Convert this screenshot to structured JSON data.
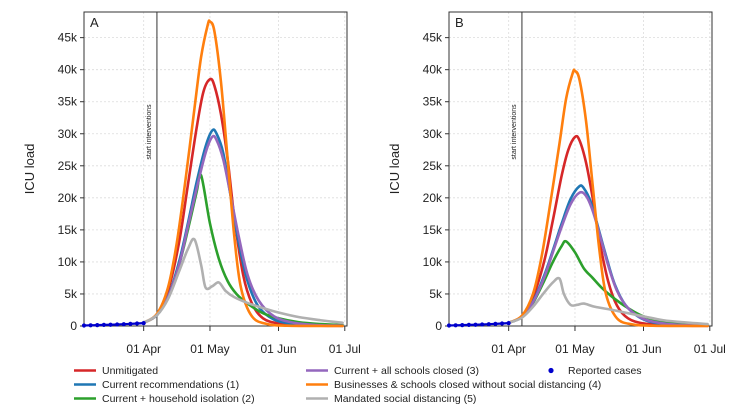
{
  "chart_data": [
    {
      "panel": "A",
      "type": "line",
      "ylabel": "ICU load",
      "xlabel": "",
      "ylim": [
        0,
        49000
      ],
      "xlim": [
        "2020-03-05",
        "2020-07-02"
      ],
      "y_ticks": [
        0,
        5000,
        10000,
        15000,
        20000,
        25000,
        30000,
        35000,
        40000,
        45000
      ],
      "y_tick_labels": [
        "0",
        "5k",
        "10k",
        "15k",
        "20k",
        "25k",
        "30k",
        "35k",
        "40k",
        "45k"
      ],
      "x_ticks": [
        "2020-04-01",
        "2020-05-01",
        "2020-06-01",
        "2020-07-01"
      ],
      "x_tick_labels": [
        "01 Apr",
        "01 May",
        "01 Jun",
        "01 Jul"
      ],
      "grid": true,
      "annotation": {
        "x": "2020-04-07",
        "label": "start interventions"
      },
      "series": [
        {
          "name": "Unmitigated",
          "color": "#d62728",
          "x": [
            "2020-04-01",
            "2020-04-07",
            "2020-04-12",
            "2020-04-17",
            "2020-04-21",
            "2020-04-25",
            "2020-04-28",
            "2020-05-01",
            "2020-05-03",
            "2020-05-06",
            "2020-05-09",
            "2020-05-12",
            "2020-05-16",
            "2020-05-20",
            "2020-05-25",
            "2020-06-01",
            "2020-06-10",
            "2020-06-20",
            "2020-06-30"
          ],
          "y": [
            500,
            1800,
            5500,
            13000,
            22000,
            31000,
            36500,
            38500,
            37500,
            33000,
            26000,
            17000,
            8000,
            3500,
            1200,
            400,
            150,
            50,
            20
          ]
        },
        {
          "name": "Current recommendations (1)",
          "color": "#1f77b4",
          "x": [
            "2020-04-01",
            "2020-04-07",
            "2020-04-12",
            "2020-04-17",
            "2020-04-21",
            "2020-04-25",
            "2020-04-29",
            "2020-05-02",
            "2020-05-04",
            "2020-05-07",
            "2020-05-10",
            "2020-05-14",
            "2020-05-18",
            "2020-05-23",
            "2020-05-30",
            "2020-06-08",
            "2020-06-18",
            "2020-06-30"
          ],
          "y": [
            500,
            1700,
            4500,
            10000,
            16000,
            22500,
            28000,
            30500,
            30000,
            27000,
            21000,
            13000,
            7000,
            3000,
            1000,
            300,
            100,
            30
          ]
        },
        {
          "name": "Current + household isolation (2)",
          "color": "#2ca02c",
          "x": [
            "2020-04-01",
            "2020-04-07",
            "2020-04-12",
            "2020-04-17",
            "2020-04-21",
            "2020-04-25",
            "2020-04-27",
            "2020-05-01",
            "2020-05-05",
            "2020-05-09",
            "2020-05-13",
            "2020-05-18",
            "2020-05-25",
            "2020-06-01",
            "2020-06-10",
            "2020-06-20",
            "2020-06-30"
          ],
          "y": [
            500,
            1700,
            4500,
            9500,
            15000,
            21000,
            23500,
            16000,
            10500,
            7000,
            5000,
            3500,
            2000,
            1200,
            600,
            300,
            150
          ]
        },
        {
          "name": "Current + all schools closed (3)",
          "color": "#9467bd",
          "x": [
            "2020-04-01",
            "2020-04-07",
            "2020-04-12",
            "2020-04-17",
            "2020-04-21",
            "2020-04-25",
            "2020-04-29",
            "2020-05-02",
            "2020-05-04",
            "2020-05-07",
            "2020-05-10",
            "2020-05-14",
            "2020-05-18",
            "2020-05-23",
            "2020-05-30",
            "2020-06-08",
            "2020-06-18",
            "2020-06-30"
          ],
          "y": [
            500,
            1700,
            4500,
            9500,
            15500,
            21500,
            27000,
            29500,
            29000,
            26000,
            21000,
            14000,
            8000,
            4000,
            1500,
            500,
            150,
            50
          ]
        },
        {
          "name": "Businesses & schools closed without social distancing (4)",
          "color": "#ff7f0e",
          "x": [
            "2020-04-01",
            "2020-04-07",
            "2020-04-12",
            "2020-04-16",
            "2020-04-20",
            "2020-04-24",
            "2020-04-27",
            "2020-04-30",
            "2020-05-01",
            "2020-05-03",
            "2020-05-06",
            "2020-05-09",
            "2020-05-12",
            "2020-05-15",
            "2020-05-20",
            "2020-05-27",
            "2020-06-05",
            "2020-06-20",
            "2020-06-30"
          ],
          "y": [
            500,
            1900,
            6000,
            13000,
            23000,
            34000,
            42000,
            47000,
            47500,
            46000,
            38000,
            26000,
            14000,
            6000,
            1500,
            300,
            50,
            10,
            0
          ]
        },
        {
          "name": "Mandated social distancing (5)",
          "color": "#b0b0b0",
          "x": [
            "2020-04-01",
            "2020-04-07",
            "2020-04-12",
            "2020-04-17",
            "2020-04-21",
            "2020-04-24",
            "2020-04-27",
            "2020-04-29",
            "2020-05-02",
            "2020-05-05",
            "2020-05-08",
            "2020-05-12",
            "2020-05-18",
            "2020-05-25",
            "2020-06-01",
            "2020-06-10",
            "2020-06-20",
            "2020-06-30"
          ],
          "y": [
            500,
            1700,
            4200,
            8500,
            12000,
            13500,
            9500,
            6000,
            6200,
            6800,
            5500,
            4500,
            3600,
            2800,
            2100,
            1400,
            900,
            500
          ]
        },
        {
          "name": "Reported cases",
          "color": "#0000cc",
          "style": "points",
          "x": [
            "2020-03-05",
            "2020-03-08",
            "2020-03-11",
            "2020-03-14",
            "2020-03-17",
            "2020-03-20",
            "2020-03-23",
            "2020-03-26",
            "2020-03-29",
            "2020-04-01"
          ],
          "y": [
            80,
            110,
            140,
            170,
            200,
            240,
            280,
            330,
            390,
            450
          ]
        }
      ]
    },
    {
      "panel": "B",
      "type": "line",
      "ylabel": "ICU load",
      "xlabel": "",
      "ylim": [
        0,
        49000
      ],
      "xlim": [
        "2020-03-05",
        "2020-07-02"
      ],
      "y_ticks": [
        0,
        5000,
        10000,
        15000,
        20000,
        25000,
        30000,
        35000,
        40000,
        45000
      ],
      "y_tick_labels": [
        "0",
        "5k",
        "10k",
        "15k",
        "20k",
        "25k",
        "30k",
        "35k",
        "40k",
        "45k"
      ],
      "x_ticks": [
        "2020-04-01",
        "2020-05-01",
        "2020-06-01",
        "2020-07-01"
      ],
      "x_tick_labels": [
        "01 Apr",
        "01 May",
        "01 Jun",
        "01 Jul"
      ],
      "grid": true,
      "annotation": {
        "x": "2020-04-07",
        "label": "start interventions"
      },
      "series": [
        {
          "name": "Unmitigated",
          "color": "#d62728",
          "x": [
            "2020-04-01",
            "2020-04-07",
            "2020-04-12",
            "2020-04-17",
            "2020-04-21",
            "2020-04-25",
            "2020-04-28",
            "2020-05-01",
            "2020-05-03",
            "2020-05-06",
            "2020-05-09",
            "2020-05-12",
            "2020-05-16",
            "2020-05-20",
            "2020-05-25",
            "2020-06-01",
            "2020-06-10",
            "2020-06-20",
            "2020-06-30"
          ],
          "y": [
            500,
            1500,
            4500,
            10000,
            16500,
            23500,
            27500,
            29500,
            29000,
            25500,
            20000,
            13500,
            7000,
            3200,
            1200,
            400,
            150,
            50,
            20
          ]
        },
        {
          "name": "Current recommendations (1)",
          "color": "#1f77b4",
          "x": [
            "2020-04-01",
            "2020-04-07",
            "2020-04-12",
            "2020-04-17",
            "2020-04-21",
            "2020-04-25",
            "2020-04-29",
            "2020-05-03",
            "2020-05-05",
            "2020-05-08",
            "2020-05-11",
            "2020-05-15",
            "2020-05-19",
            "2020-05-24",
            "2020-05-31",
            "2020-06-08",
            "2020-06-18",
            "2020-06-30"
          ],
          "y": [
            500,
            1400,
            3800,
            7800,
            11800,
            16000,
            19800,
            21800,
            21500,
            19500,
            16000,
            11000,
            6500,
            3200,
            1200,
            400,
            120,
            40
          ]
        },
        {
          "name": "Current + household isolation (2)",
          "color": "#2ca02c",
          "x": [
            "2020-04-01",
            "2020-04-07",
            "2020-04-12",
            "2020-04-17",
            "2020-04-21",
            "2020-04-25",
            "2020-04-27",
            "2020-05-01",
            "2020-05-05",
            "2020-05-09",
            "2020-05-13",
            "2020-05-18",
            "2020-05-25",
            "2020-06-01",
            "2020-06-10",
            "2020-06-20",
            "2020-06-30"
          ],
          "y": [
            500,
            1400,
            3600,
            7000,
            10000,
            12500,
            13200,
            11500,
            9000,
            7500,
            6000,
            4500,
            2800,
            1500,
            700,
            300,
            120
          ]
        },
        {
          "name": "Current + all schools closed (3)",
          "color": "#9467bd",
          "x": [
            "2020-04-01",
            "2020-04-07",
            "2020-04-12",
            "2020-04-17",
            "2020-04-21",
            "2020-04-25",
            "2020-04-29",
            "2020-05-03",
            "2020-05-06",
            "2020-05-09",
            "2020-05-12",
            "2020-05-16",
            "2020-05-20",
            "2020-05-25",
            "2020-06-01",
            "2020-06-10",
            "2020-06-20",
            "2020-06-30"
          ],
          "y": [
            500,
            1400,
            3700,
            7500,
            11500,
            15500,
            19000,
            20800,
            20300,
            18000,
            14500,
            9500,
            5500,
            2800,
            1100,
            400,
            120,
            40
          ]
        },
        {
          "name": "Businesses & schools closed without social distancing (4)",
          "color": "#ff7f0e",
          "x": [
            "2020-04-01",
            "2020-04-07",
            "2020-04-12",
            "2020-04-16",
            "2020-04-20",
            "2020-04-24",
            "2020-04-27",
            "2020-04-30",
            "2020-05-01",
            "2020-05-03",
            "2020-05-06",
            "2020-05-09",
            "2020-05-12",
            "2020-05-15",
            "2020-05-20",
            "2020-05-27",
            "2020-06-05",
            "2020-06-20",
            "2020-06-30"
          ],
          "y": [
            500,
            1600,
            5000,
            11000,
            19500,
            28500,
            35500,
            39500,
            39800,
            38500,
            32000,
            22000,
            12000,
            5000,
            1200,
            250,
            50,
            10,
            0
          ]
        },
        {
          "name": "Mandated social distancing (5)",
          "color": "#b0b0b0",
          "x": [
            "2020-04-01",
            "2020-04-07",
            "2020-04-12",
            "2020-04-17",
            "2020-04-21",
            "2020-04-24",
            "2020-04-26",
            "2020-04-29",
            "2020-05-02",
            "2020-05-05",
            "2020-05-10",
            "2020-05-18",
            "2020-05-25",
            "2020-06-01",
            "2020-06-10",
            "2020-06-20",
            "2020-06-30"
          ],
          "y": [
            500,
            1300,
            3000,
            5200,
            6800,
            7400,
            5000,
            3300,
            3300,
            3500,
            3000,
            2500,
            2000,
            1500,
            900,
            550,
            300
          ]
        },
        {
          "name": "Reported cases",
          "color": "#0000cc",
          "style": "points",
          "x": [
            "2020-03-05",
            "2020-03-08",
            "2020-03-11",
            "2020-03-14",
            "2020-03-17",
            "2020-03-20",
            "2020-03-23",
            "2020-03-26",
            "2020-03-29",
            "2020-04-01"
          ],
          "y": [
            80,
            110,
            140,
            170,
            200,
            240,
            280,
            330,
            390,
            450
          ]
        }
      ]
    }
  ],
  "legend": {
    "placement": "bottom",
    "items": [
      {
        "label": "Unmitigated",
        "color": "#d62728",
        "marker": "line"
      },
      {
        "label": "Current + all schools closed (3)",
        "color": "#9467bd",
        "marker": "line"
      },
      {
        "label": "Reported cases",
        "color": "#0000cc",
        "marker": "point"
      },
      {
        "label": "Current recommendations (1)",
        "color": "#1f77b4",
        "marker": "line"
      },
      {
        "label": "Businesses & schools closed without social distancing (4)",
        "color": "#ff7f0e",
        "marker": "line"
      },
      {
        "label": "Current + household isolation (2)",
        "color": "#2ca02c",
        "marker": "line"
      },
      {
        "label": "Mandated social distancing (5)",
        "color": "#b0b0b0",
        "marker": "line"
      }
    ]
  }
}
